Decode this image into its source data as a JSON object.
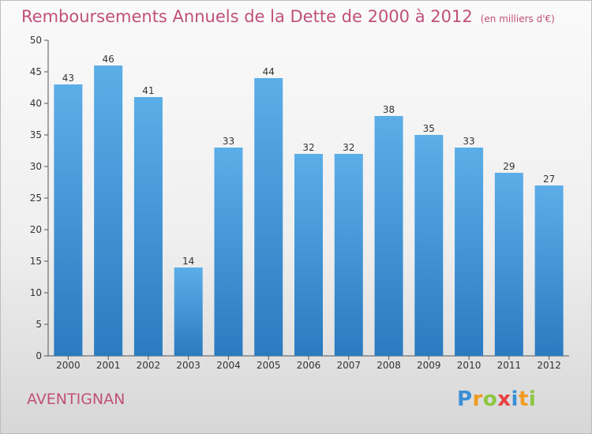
{
  "header": {
    "title": "Remboursements Annuels de la Dette de 2000 à 2012",
    "unit": "(en milliers d'€)"
  },
  "footer": {
    "commune": "AVENTIGNAN",
    "logo_letters": [
      "P",
      "r",
      "o",
      "x",
      "i",
      "t",
      "i"
    ],
    "logo_colors": [
      "#3a8fd6",
      "#f29a1f",
      "#8cc63f",
      "#e8403f",
      "#3a8fd6",
      "#f29a1f",
      "#8cc63f"
    ]
  },
  "colors": {
    "title": "#c0507a",
    "bar_top": "#5caee8",
    "bar_bottom": "#2a7bc0",
    "axis": "#555555"
  },
  "chart_data": {
    "type": "bar",
    "categories": [
      "2000",
      "2001",
      "2002",
      "2003",
      "2004",
      "2005",
      "2006",
      "2007",
      "2008",
      "2009",
      "2010",
      "2011",
      "2012"
    ],
    "values": [
      43,
      46,
      41,
      14,
      33,
      44,
      32,
      32,
      38,
      35,
      33,
      29,
      27
    ],
    "ylim": [
      0,
      50
    ],
    "yticks": [
      0,
      5,
      10,
      15,
      20,
      25,
      30,
      35,
      40,
      45,
      50
    ],
    "grid": false,
    "data_labels": true
  }
}
